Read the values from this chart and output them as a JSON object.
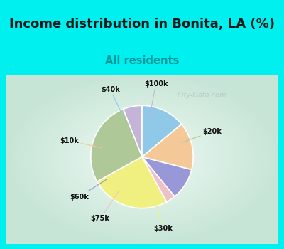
{
  "title": "Income distribution in Bonita, LA (%)",
  "subtitle": "All residents",
  "title_fontsize": 13,
  "subtitle_fontsize": 10.5,
  "slices": [
    {
      "label": "$100k",
      "value": 6,
      "color": "#c4b4d8"
    },
    {
      "label": "$20k",
      "value": 27,
      "color": "#aec898"
    },
    {
      "label": "$30k",
      "value": 25,
      "color": "#f0f080"
    },
    {
      "label": "$75k",
      "value": 3,
      "color": "#f0c0c8"
    },
    {
      "label": "$60k",
      "value": 10,
      "color": "#9898d8"
    },
    {
      "label": "$10k",
      "value": 15,
      "color": "#f5c898"
    },
    {
      "label": "$40k",
      "value": 14,
      "color": "#90c8e8"
    }
  ],
  "cyan_border": "#00f0f0",
  "chart_bg_outer": "#a8ddc8",
  "chart_bg_inner": "#f0faf8",
  "title_color": "#1a1a1a",
  "subtitle_color": "#009898",
  "label_color": "#111111",
  "watermark": "City-Data.com",
  "startangle": 90
}
